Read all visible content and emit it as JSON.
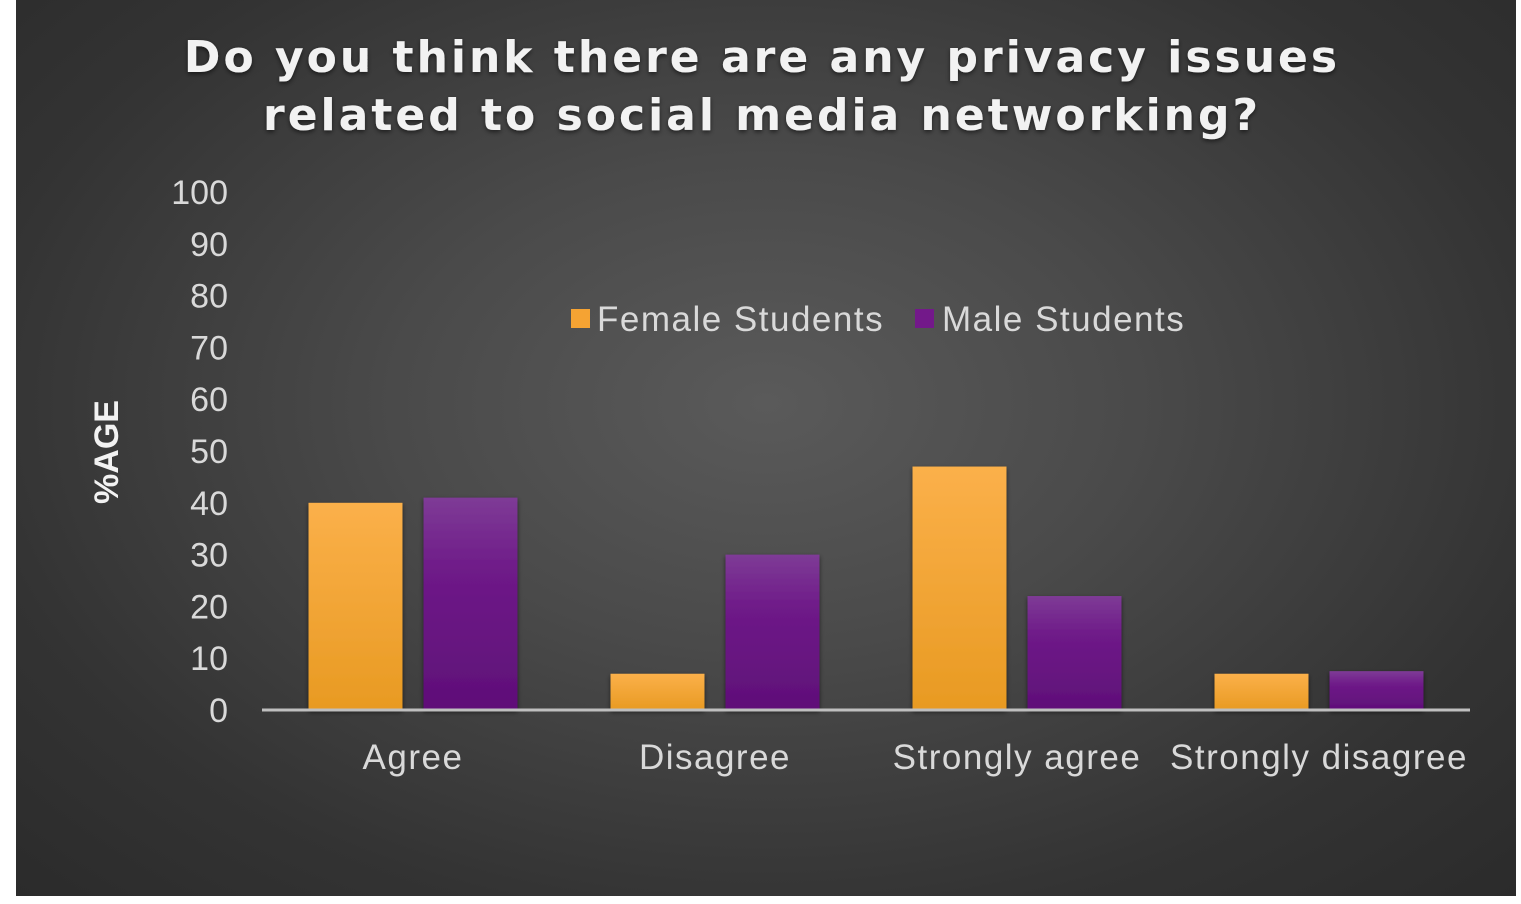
{
  "chart_data": {
    "type": "bar",
    "title": "Do you think there are any privacy issues related to social media networking?",
    "title_lines": [
      "Do you think there are any privacy issues",
      "related to social media networking?"
    ],
    "xlabel": "",
    "ylabel": "%AGE",
    "ylim": [
      0,
      100
    ],
    "yticks": [
      0,
      10,
      20,
      30,
      40,
      50,
      60,
      70,
      80,
      90,
      100
    ],
    "grid": false,
    "legend_position": "top-center",
    "categories": [
      "Agree",
      "Disagree",
      "Strongly agree",
      "Strongly disagree"
    ],
    "series": [
      {
        "name": "Female Students",
        "values": [
          40,
          7,
          47,
          7
        ],
        "color": "#f5a333"
      },
      {
        "name": "Male Students",
        "values": [
          41,
          30,
          22,
          7.5
        ],
        "color": "#73198a"
      }
    ]
  }
}
